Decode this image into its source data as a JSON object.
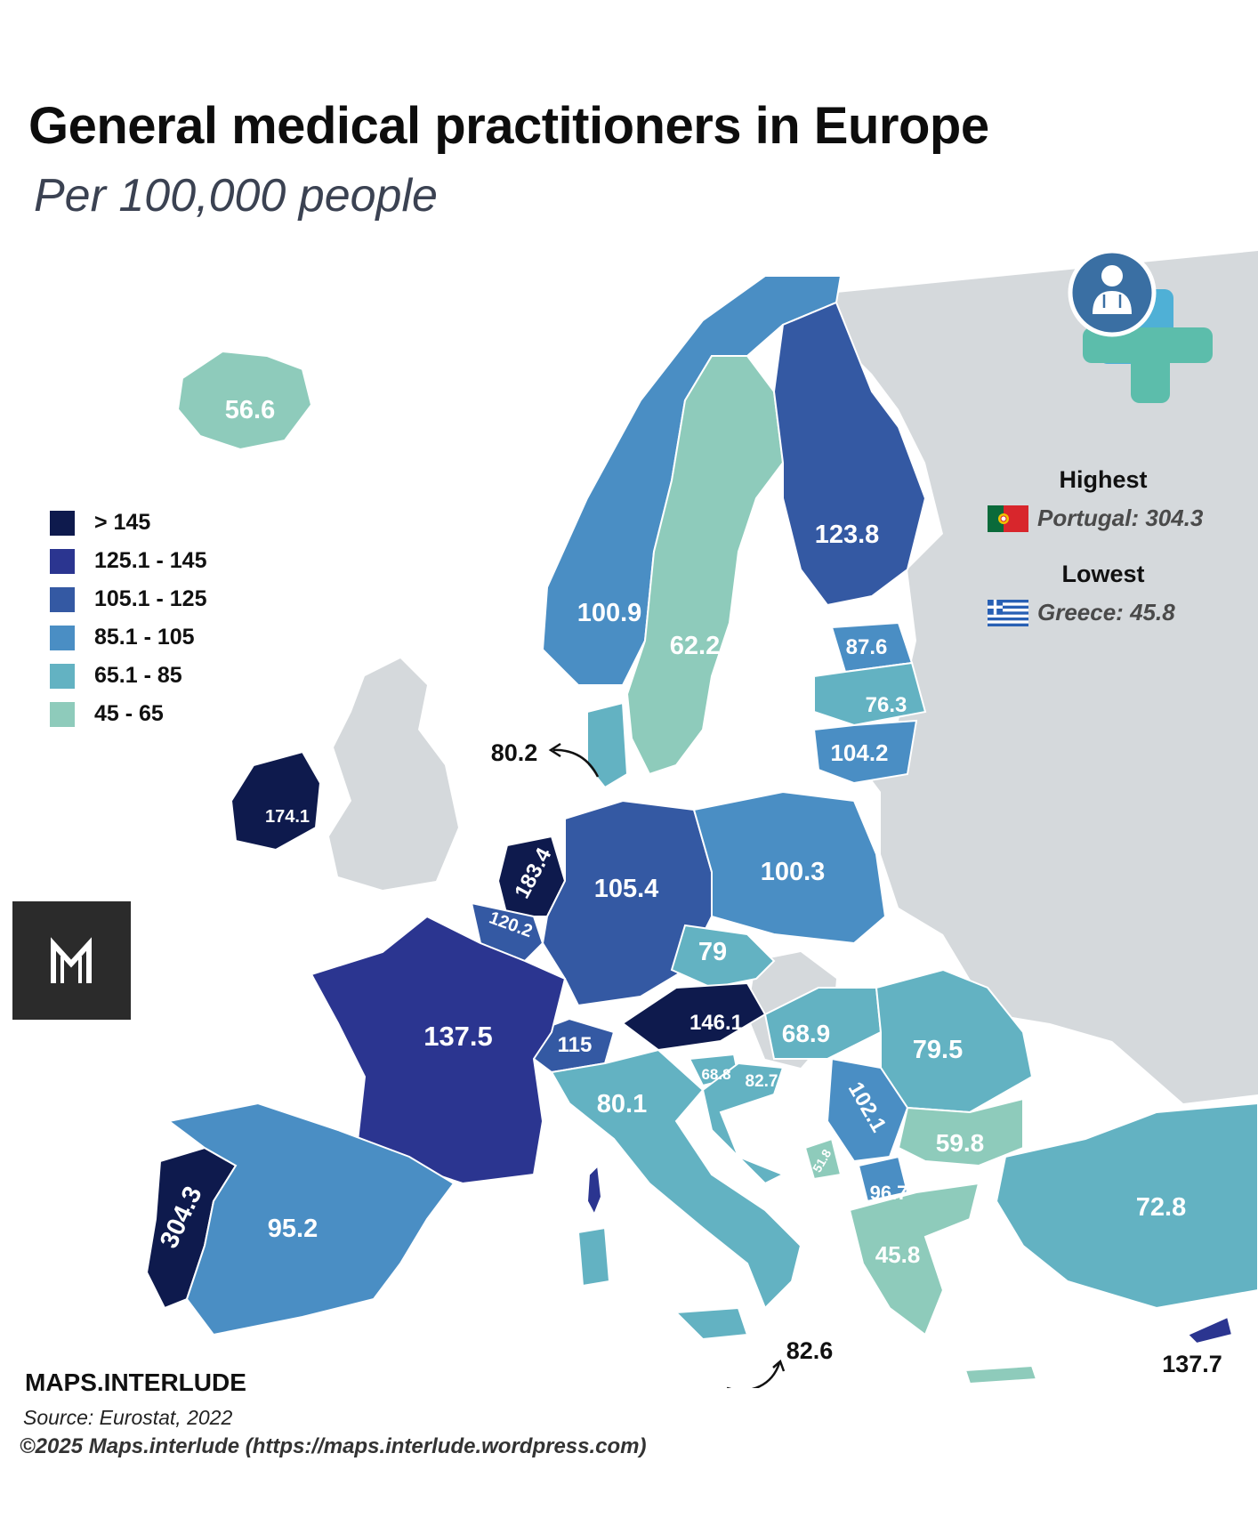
{
  "header": {
    "title": "General medical practitioners in Europe",
    "subtitle": "Per 100,000 people"
  },
  "legend": {
    "items": [
      {
        "label": "> 145",
        "color": "#0e1a4d"
      },
      {
        "label": "125.1 - 145",
        "color": "#2b3590"
      },
      {
        "label": "105.1 - 125",
        "color": "#3459a3"
      },
      {
        "label": "85.1 - 105",
        "color": "#4a8ec4"
      },
      {
        "label": "65.1 - 85",
        "color": "#63b2c2"
      },
      {
        "label": "45 - 65",
        "color": "#8ecbbb"
      }
    ]
  },
  "stats": {
    "highest_heading": "Highest",
    "highest_value": "Portugal: 304.3",
    "lowest_heading": "Lowest",
    "lowest_value": "Greece: 45.8"
  },
  "countries": [
    {
      "name": "Iceland",
      "label": "56.6",
      "color": "#8ecbbb"
    },
    {
      "name": "Norway",
      "label": "100.9",
      "color": "#4a8ec4"
    },
    {
      "name": "Sweden",
      "label": "62.2",
      "color": "#8ecbbb"
    },
    {
      "name": "Finland",
      "label": "123.8",
      "color": "#3459a3"
    },
    {
      "name": "Estonia",
      "label": "87.6",
      "color": "#4a8ec4"
    },
    {
      "name": "Latvia",
      "label": "76.3",
      "color": "#63b2c2"
    },
    {
      "name": "Lithuania",
      "label": "104.2",
      "color": "#4a8ec4"
    },
    {
      "name": "Denmark",
      "label": "80.2",
      "color": "#63b2c2"
    },
    {
      "name": "Ireland",
      "label": "174.1",
      "color": "#0e1a4d"
    },
    {
      "name": "Netherlands",
      "label": "183.4",
      "color": "#0e1a4d"
    },
    {
      "name": "Belgium",
      "label": "120.2",
      "color": "#3459a3"
    },
    {
      "name": "Germany",
      "label": "105.4",
      "color": "#3459a3"
    },
    {
      "name": "Poland",
      "label": "100.3",
      "color": "#4a8ec4"
    },
    {
      "name": "Czechia",
      "label": "79",
      "color": "#63b2c2"
    },
    {
      "name": "Austria",
      "label": "146.1",
      "color": "#0e1a4d"
    },
    {
      "name": "Switzerland",
      "label": "115",
      "color": "#3459a3"
    },
    {
      "name": "France",
      "label": "137.5",
      "color": "#2b3590"
    },
    {
      "name": "Hungary",
      "label": "68.9",
      "color": "#63b2c2"
    },
    {
      "name": "Romania",
      "label": "79.5",
      "color": "#63b2c2"
    },
    {
      "name": "Slovenia",
      "label": "68.8",
      "color": "#63b2c2"
    },
    {
      "name": "Croatia",
      "label": "82.7",
      "color": "#63b2c2"
    },
    {
      "name": "Serbia",
      "label": "102.1",
      "color": "#4a8ec4"
    },
    {
      "name": "Italy",
      "label": "80.1",
      "color": "#63b2c2"
    },
    {
      "name": "Malta",
      "label": "82.6",
      "color": "#63b2c2"
    },
    {
      "name": "Bulgaria",
      "label": "59.8",
      "color": "#8ecbbb"
    },
    {
      "name": "Montenegro",
      "label": "51.8",
      "color": "#8ecbbb"
    },
    {
      "name": "North Macedonia",
      "label": "96.7",
      "color": "#4a8ec4"
    },
    {
      "name": "Greece",
      "label": "45.8",
      "color": "#8ecbbb"
    },
    {
      "name": "Turkey",
      "label": "72.8",
      "color": "#63b2c2"
    },
    {
      "name": "Cyprus",
      "label": "137.7",
      "color": "#2b3590"
    },
    {
      "name": "Portugal",
      "label": "304.3",
      "color": "#0e1a4d"
    },
    {
      "name": "Spain",
      "label": "95.2",
      "color": "#4a8ec4"
    }
  ],
  "footer": {
    "brand": "MAPS.INTERLUDE",
    "source": "Source: Eurostat, 2022",
    "copyright": "©2025 Maps.interlude (https://maps.interlude.wordpress.com)"
  },
  "colors": {
    "nodata": "#d5d9dc",
    "sea": "#ffffff",
    "border": "#ffffff"
  },
  "icons": [
    "doctor-icon",
    "medical-cross-icon",
    "maps-interlude-logo-icon",
    "portugal-flag-icon",
    "greece-flag-icon"
  ]
}
